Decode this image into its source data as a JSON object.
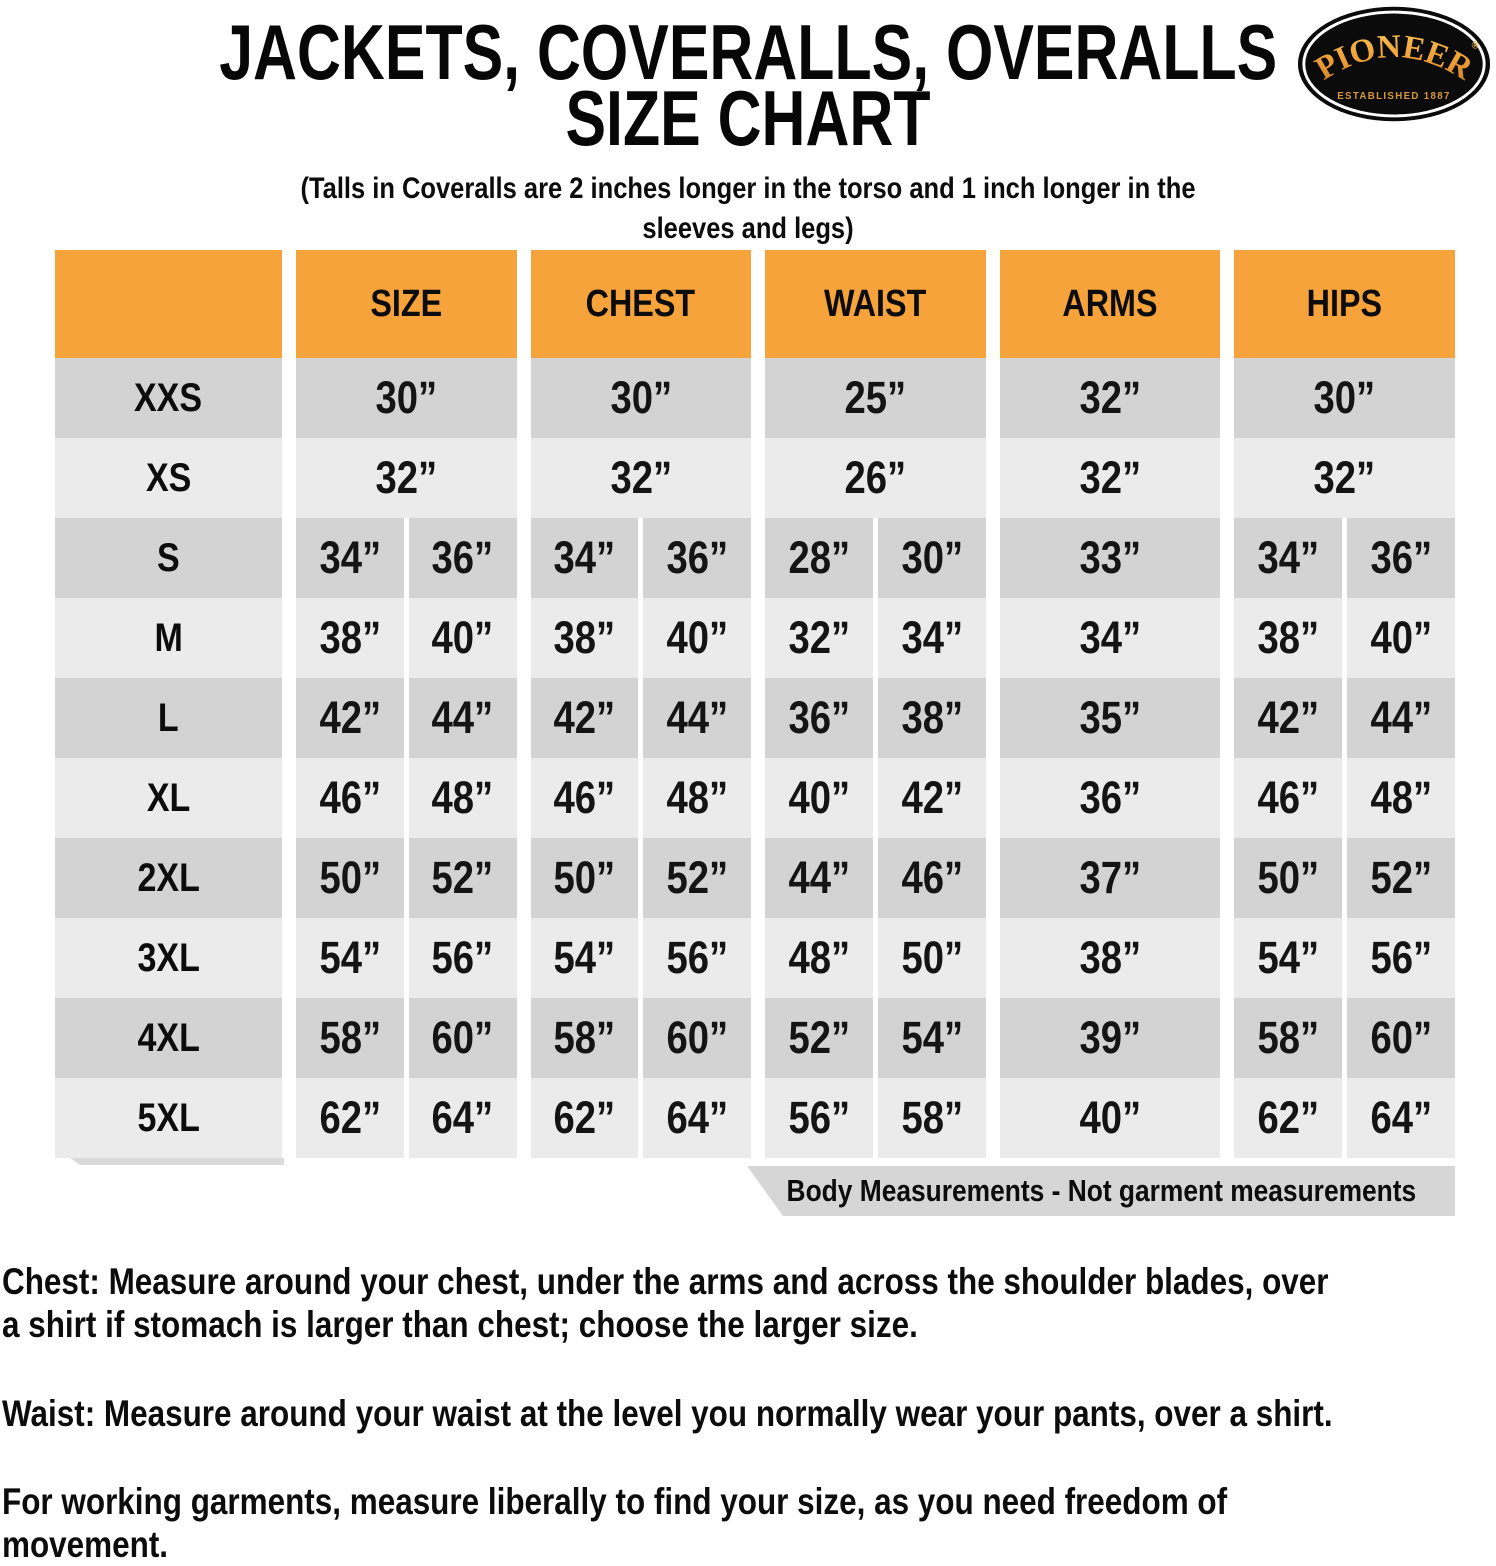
{
  "page": {
    "title_line1": "JACKETS, COVERALLS, OVERALLS",
    "title_line2": "SIZE CHART",
    "subtitle": "(Talls in Coveralls are 2 inches longer in the torso and 1 inch longer in the sleeves and legs)"
  },
  "logo": {
    "brand": "PIONEER",
    "registered": "®",
    "established": "ESTABLISHED 1887"
  },
  "table": {
    "columns": [
      "SIZE",
      "CHEST",
      "WAIST",
      "ARMS",
      "HIPS"
    ],
    "unit_suffix": "”",
    "footnote": "Body Measurements - Not garment measurements"
  },
  "colors": {
    "header_orange": "#F6A33B",
    "row_dark": "#D2D3D2",
    "row_light": "#EAEBEA",
    "banner_gray": "#D6D6D6",
    "logo_gold": "#E89B3C"
  },
  "chart_data": {
    "type": "table",
    "title": "JACKETS, COVERALLS, OVERALLS SIZE CHART",
    "subtitle": "(Talls in Coveralls are 2 inches longer in the torso and 1 inch longer in the sleeves and legs)",
    "columns": [
      "SIZE",
      "CHEST",
      "WAIST",
      "ARMS",
      "HIPS"
    ],
    "units": "inches",
    "rows": [
      {
        "size_label": "XXS",
        "size": [
          30
        ],
        "chest": [
          30
        ],
        "waist": [
          25
        ],
        "arms": [
          32
        ],
        "hips": [
          30
        ]
      },
      {
        "size_label": "XS",
        "size": [
          32
        ],
        "chest": [
          32
        ],
        "waist": [
          26
        ],
        "arms": [
          32
        ],
        "hips": [
          32
        ]
      },
      {
        "size_label": "S",
        "size": [
          34,
          36
        ],
        "chest": [
          34,
          36
        ],
        "waist": [
          28,
          30
        ],
        "arms": [
          33
        ],
        "hips": [
          34,
          36
        ]
      },
      {
        "size_label": "M",
        "size": [
          38,
          40
        ],
        "chest": [
          38,
          40
        ],
        "waist": [
          32,
          34
        ],
        "arms": [
          34
        ],
        "hips": [
          38,
          40
        ]
      },
      {
        "size_label": "L",
        "size": [
          42,
          44
        ],
        "chest": [
          42,
          44
        ],
        "waist": [
          36,
          38
        ],
        "arms": [
          35
        ],
        "hips": [
          42,
          44
        ]
      },
      {
        "size_label": "XL",
        "size": [
          46,
          48
        ],
        "chest": [
          46,
          48
        ],
        "waist": [
          40,
          42
        ],
        "arms": [
          36
        ],
        "hips": [
          46,
          48
        ]
      },
      {
        "size_label": "2XL",
        "size": [
          50,
          52
        ],
        "chest": [
          50,
          52
        ],
        "waist": [
          44,
          46
        ],
        "arms": [
          37
        ],
        "hips": [
          50,
          52
        ]
      },
      {
        "size_label": "3XL",
        "size": [
          54,
          56
        ],
        "chest": [
          54,
          56
        ],
        "waist": [
          48,
          50
        ],
        "arms": [
          38
        ],
        "hips": [
          54,
          56
        ]
      },
      {
        "size_label": "4XL",
        "size": [
          58,
          60
        ],
        "chest": [
          58,
          60
        ],
        "waist": [
          52,
          54
        ],
        "arms": [
          39
        ],
        "hips": [
          58,
          60
        ]
      },
      {
        "size_label": "5XL",
        "size": [
          62,
          64
        ],
        "chest": [
          62,
          64
        ],
        "waist": [
          56,
          58
        ],
        "arms": [
          40
        ],
        "hips": [
          62,
          64
        ]
      }
    ],
    "footnote": "Body Measurements - Not garment measurements",
    "layout": {
      "header_color": "#F6A33B",
      "alternating_row_colors": [
        "#D2D3D2",
        "#EAEBEA"
      ]
    }
  },
  "notes": [
    {
      "lines": [
        "Chest: Measure around your chest, under the arms and across the shoulder blades, over",
        "a shirt if stomach is larger than chest; choose the larger size."
      ]
    },
    {
      "lines": [
        "Waist: Measure around your waist at the level you normally wear your pants, over a shirt."
      ]
    },
    {
      "lines": [
        "For working garments, measure liberally to find your size, as you need freedom of",
        "movement."
      ]
    }
  ]
}
